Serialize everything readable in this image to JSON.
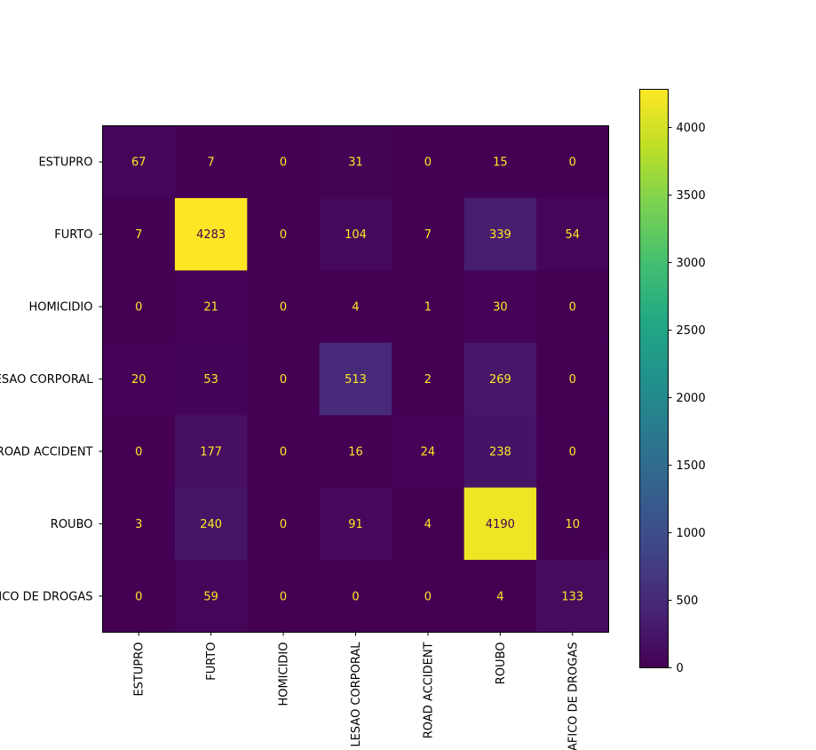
{
  "chart_data": {
    "type": "heatmap",
    "title": "",
    "xlabel": "",
    "ylabel": "",
    "row_labels": [
      "ESTUPRO",
      "FURTO",
      "HOMICIDIO",
      "LESAO CORPORAL",
      "ROAD ACCIDENT",
      "ROUBO",
      "TRAFICO DE DROGAS"
    ],
    "col_labels": [
      "ESTUPRO",
      "FURTO",
      "HOMICIDIO",
      "LESAO CORPORAL",
      "ROAD ACCIDENT",
      "ROUBO",
      "TRAFICO DE DROGAS"
    ],
    "values": [
      [
        67,
        7,
        0,
        31,
        0,
        15,
        0
      ],
      [
        7,
        4283,
        0,
        104,
        7,
        339,
        54
      ],
      [
        0,
        21,
        0,
        4,
        1,
        30,
        0
      ],
      [
        20,
        53,
        0,
        513,
        2,
        269,
        0
      ],
      [
        0,
        177,
        0,
        16,
        24,
        238,
        0
      ],
      [
        3,
        240,
        0,
        91,
        4,
        4190,
        10
      ],
      [
        0,
        59,
        0,
        0,
        0,
        4,
        133
      ]
    ],
    "colormap": "viridis",
    "colorbar": {
      "min": 0,
      "max": 4283,
      "ticks": [
        0,
        500,
        1000,
        1500,
        2000,
        2500,
        3000,
        3500,
        4000
      ]
    },
    "text_colors": {
      "on_dark": "#fde725",
      "on_bright": "#440154"
    }
  }
}
